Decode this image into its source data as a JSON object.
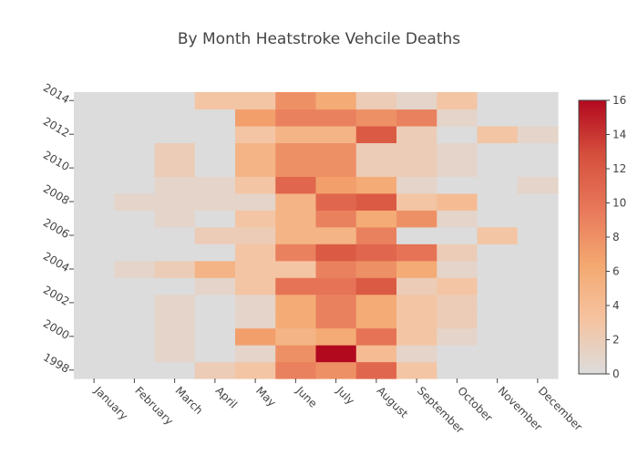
{
  "chart_data": {
    "type": "heatmap",
    "title": "By Month Heatstroke Vehcile Deaths",
    "x_categories": [
      "January",
      "February",
      "March",
      "April",
      "May",
      "June",
      "July",
      "August",
      "September",
      "October",
      "November",
      "December"
    ],
    "y_years": [
      1998,
      1999,
      2000,
      2001,
      2002,
      2003,
      2004,
      2005,
      2006,
      2007,
      2008,
      2009,
      2010,
      2011,
      2012,
      2013,
      2014
    ],
    "y_tick_labels": [
      "1998",
      "2000",
      "2002",
      "2004",
      "2006",
      "2008",
      "2010",
      "2012",
      "2014"
    ],
    "z": [
      [
        0,
        0,
        0,
        2,
        3,
        9,
        8,
        11,
        3,
        0,
        0,
        0
      ],
      [
        0,
        0,
        1,
        0,
        1,
        8,
        16,
        4,
        1,
        0,
        0,
        0
      ],
      [
        0,
        0,
        1,
        0,
        7,
        5,
        6,
        10,
        3,
        1,
        0,
        0
      ],
      [
        0,
        0,
        1,
        0,
        1,
        6,
        9,
        6,
        3,
        2,
        0,
        0
      ],
      [
        0,
        0,
        1,
        0,
        1,
        6,
        9,
        6,
        3,
        2,
        0,
        0
      ],
      [
        0,
        0,
        0,
        1,
        3,
        10,
        10,
        12,
        2,
        3,
        0,
        0
      ],
      [
        0,
        1,
        2,
        5,
        3,
        3,
        9,
        8,
        6,
        1,
        0,
        0
      ],
      [
        0,
        0,
        0,
        0,
        3,
        9,
        12,
        11,
        10,
        2,
        0,
        0
      ],
      [
        0,
        0,
        0,
        2,
        2,
        5,
        5,
        9,
        0,
        0,
        3,
        0
      ],
      [
        0,
        0,
        1,
        0,
        3,
        5,
        9,
        6,
        8,
        1,
        0,
        0
      ],
      [
        0,
        1,
        1,
        1,
        1,
        5,
        11,
        12,
        3,
        4,
        0,
        0
      ],
      [
        0,
        0,
        1,
        1,
        3,
        11,
        7,
        6,
        1,
        0,
        0,
        1
      ],
      [
        0,
        0,
        2,
        0,
        5,
        8,
        8,
        2,
        2,
        1,
        0,
        0
      ],
      [
        0,
        0,
        2,
        0,
        5,
        8,
        8,
        2,
        2,
        1,
        0,
        0
      ],
      [
        0,
        0,
        0,
        0,
        3,
        5,
        5,
        12,
        2,
        0,
        3,
        1
      ],
      [
        0,
        0,
        0,
        0,
        7,
        9,
        9,
        8,
        9,
        1,
        0,
        0
      ],
      [
        0,
        0,
        0,
        3,
        3,
        8,
        6,
        2,
        1,
        3,
        0,
        0
      ]
    ],
    "zmin": 0,
    "zmax": 16,
    "colorbar_ticks": [
      0,
      2,
      4,
      6,
      8,
      10,
      12,
      14,
      16
    ],
    "colorscale": [
      [
        0,
        "#dcdcdc"
      ],
      [
        0.2,
        "#f5c3a0"
      ],
      [
        0.4,
        "#f4a870"
      ],
      [
        0.6,
        "#e8785a"
      ],
      [
        0.8,
        "#d6503d"
      ],
      [
        1,
        "#b2091f"
      ]
    ],
    "grid": false
  }
}
